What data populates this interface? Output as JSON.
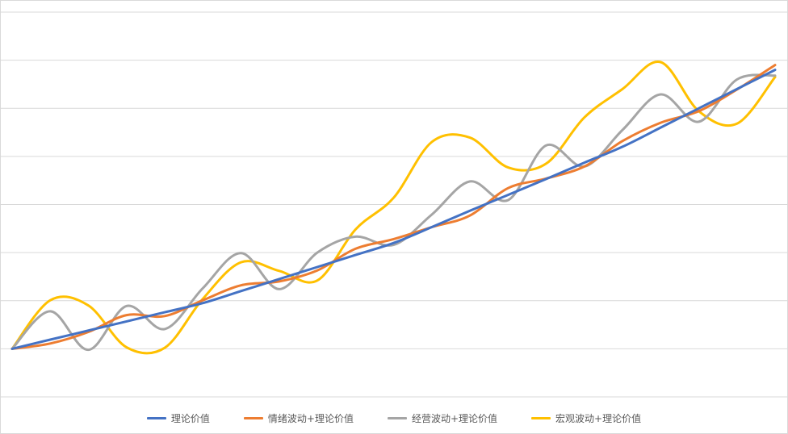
{
  "chart_data": {
    "type": "line",
    "title": "",
    "xlabel": "",
    "ylabel": "",
    "ylim": [
      0,
      8
    ],
    "grid": true,
    "legend_position": "bottom",
    "x": [
      0,
      5,
      10,
      15,
      20,
      25,
      30,
      35,
      40,
      45,
      50,
      55,
      60,
      65,
      70,
      75,
      80,
      85,
      90,
      95,
      100
    ],
    "series": [
      {
        "name": "理论价值",
        "color": "#4472C4",
        "values": [
          1.0,
          1.19,
          1.38,
          1.57,
          1.76,
          1.95,
          2.2,
          2.45,
          2.7,
          2.95,
          3.2,
          3.53,
          3.87,
          4.2,
          4.53,
          4.87,
          5.2,
          5.6,
          6.0,
          6.4,
          6.8
        ]
      },
      {
        "name": "情绪波动+理论价值",
        "color": "#ED7D31",
        "values": [
          1.0,
          1.11,
          1.35,
          1.7,
          1.68,
          2.01,
          2.32,
          2.4,
          2.63,
          3.08,
          3.28,
          3.53,
          3.77,
          4.34,
          4.54,
          4.79,
          5.32,
          5.7,
          5.94,
          6.39,
          6.9
        ]
      },
      {
        "name": "经营波动+理论价值",
        "color": "#A5A5A5",
        "values": [
          1.0,
          1.78,
          0.98,
          1.89,
          1.41,
          2.26,
          2.99,
          2.24,
          3.0,
          3.33,
          3.16,
          3.79,
          4.48,
          4.09,
          5.23,
          4.79,
          5.55,
          6.29,
          5.72,
          6.6,
          6.68
        ]
      },
      {
        "name": "宏观波动+理论价值",
        "color": "#FFC000",
        "values": [
          1.0,
          2.01,
          1.9,
          1.03,
          1.02,
          2.04,
          2.8,
          2.62,
          2.42,
          3.48,
          4.14,
          5.3,
          5.39,
          4.77,
          4.85,
          5.81,
          6.4,
          6.96,
          5.94,
          5.68,
          6.65
        ]
      }
    ]
  }
}
